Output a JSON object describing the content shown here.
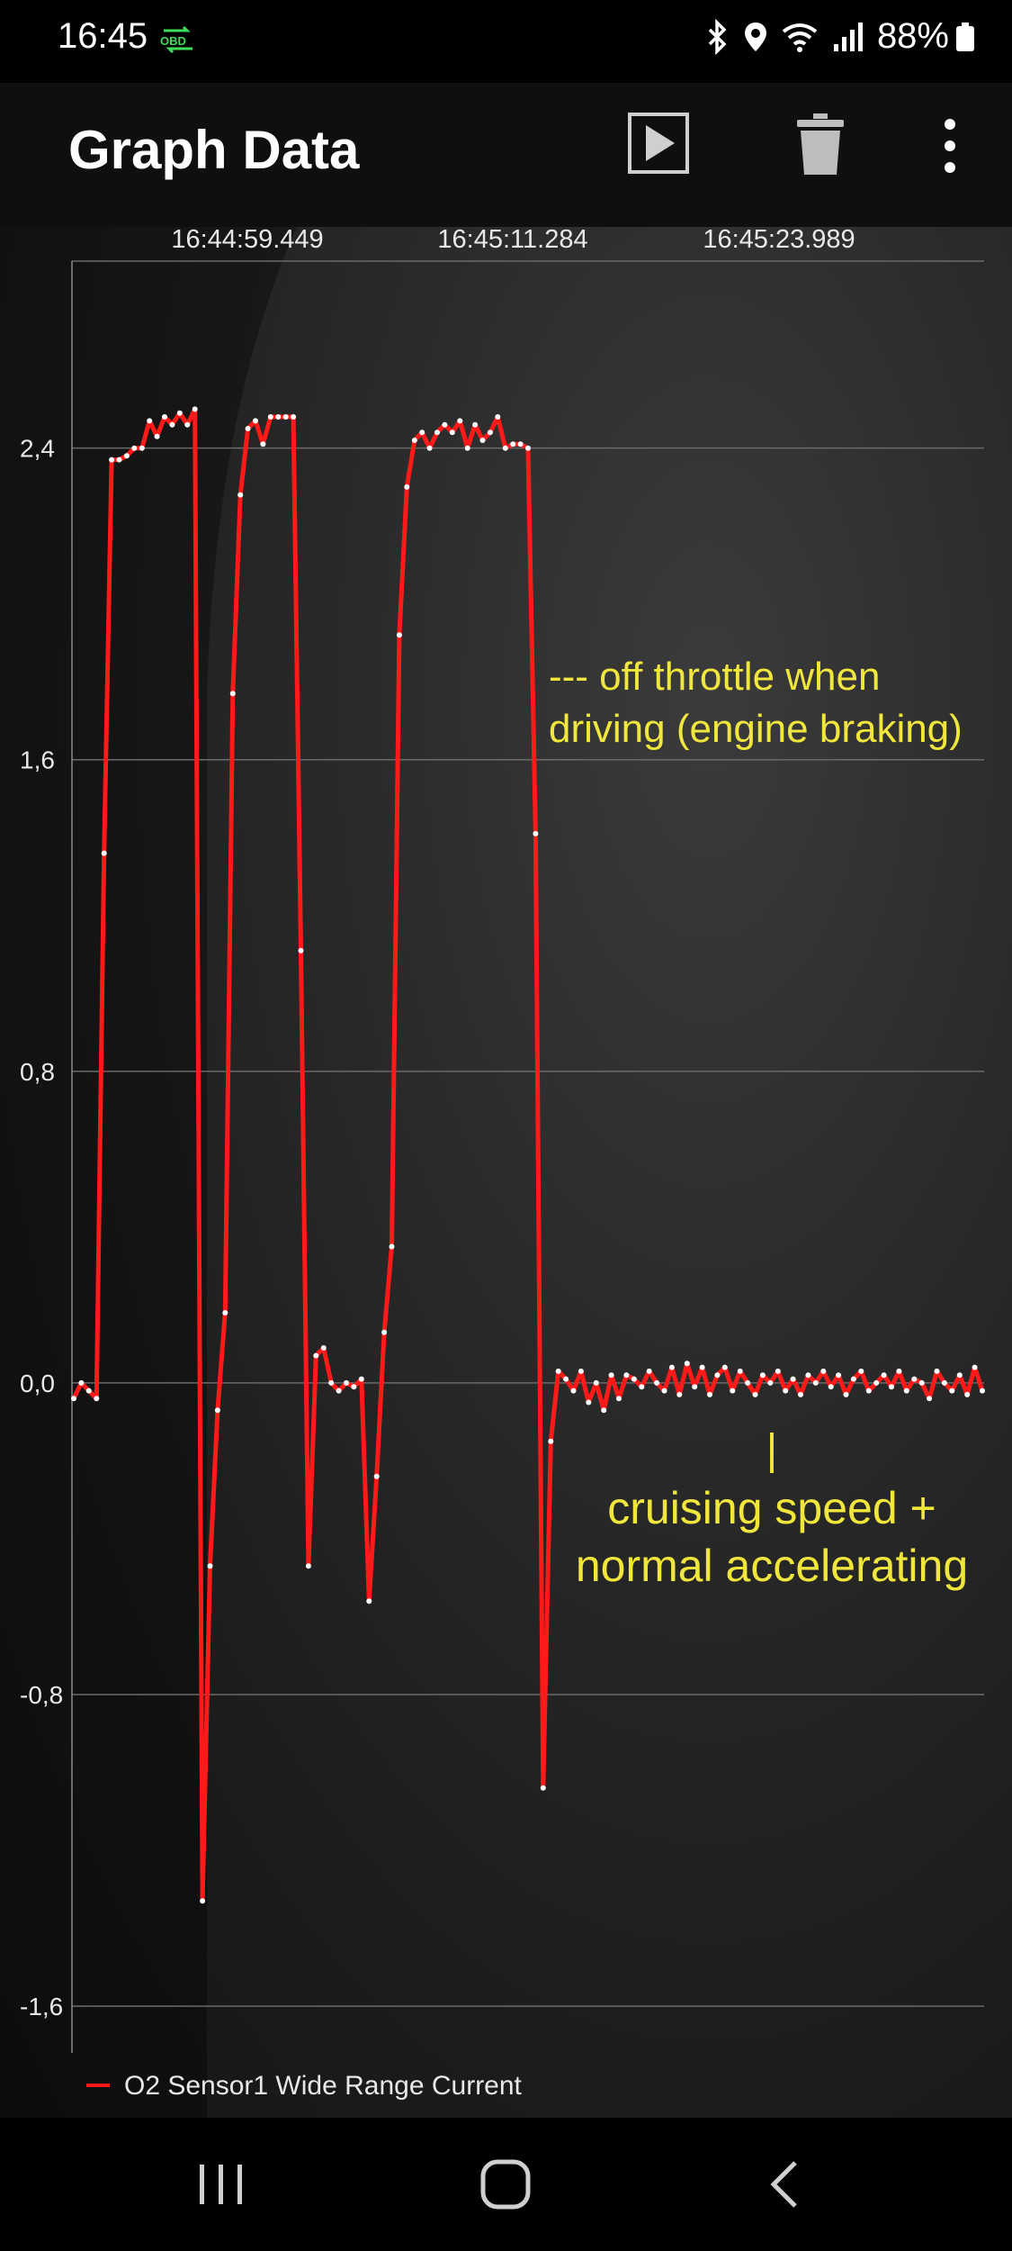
{
  "status_bar": {
    "time": "16:45",
    "obd_label": "OBD",
    "battery": "88%"
  },
  "app_bar": {
    "title": "Graph Data",
    "icons": [
      "play-icon",
      "trash-icon",
      "more-vert-icon"
    ]
  },
  "chart_data": {
    "type": "line",
    "title": "",
    "xlabel": "",
    "ylabel": "",
    "x_tick_labels": [
      "16:44:59.449",
      "16:45:11.284",
      "16:45:23.989"
    ],
    "y_ticks": [
      "2,4",
      "1,6",
      "0,8",
      "0,0",
      "-0,8",
      "-1,6"
    ],
    "y_tick_values": [
      2.4,
      1.6,
      0.8,
      0.0,
      -0.8,
      -1.6
    ],
    "ylim": [
      -1.72,
      2.88
    ],
    "grid": true,
    "legend_position": "bottom-left",
    "line_color": "#ff1a1a",
    "series": [
      {
        "name": "O2 Sensor1 Wide Range Current",
        "values": [
          -0.04,
          0.0,
          -0.02,
          -0.04,
          1.36,
          2.37,
          2.37,
          2.38,
          2.4,
          2.4,
          2.47,
          2.43,
          2.48,
          2.46,
          2.49,
          2.46,
          2.5,
          -1.33,
          -0.47,
          -0.07,
          0.18,
          1.77,
          2.28,
          2.45,
          2.47,
          2.41,
          2.48,
          2.48,
          2.48,
          2.48,
          1.11,
          -0.47,
          0.07,
          0.09,
          0.0,
          -0.02,
          0.0,
          -0.01,
          0.01,
          -0.56,
          -0.24,
          0.13,
          0.35,
          1.92,
          2.3,
          2.42,
          2.44,
          2.4,
          2.44,
          2.46,
          2.44,
          2.47,
          2.4,
          2.46,
          2.42,
          2.44,
          2.48,
          2.4,
          2.41,
          2.41,
          2.4,
          1.41,
          -1.04,
          -0.15,
          0.03,
          0.01,
          -0.02,
          0.03,
          -0.05,
          0.0,
          -0.07,
          0.02,
          -0.04,
          0.02,
          0.01,
          -0.01,
          0.03,
          0.0,
          -0.02,
          0.04,
          -0.03,
          0.05,
          -0.01,
          0.04,
          -0.03,
          0.02,
          0.04,
          -0.02,
          0.03,
          0.0,
          -0.03,
          0.02,
          0.0,
          0.03,
          -0.02,
          0.01,
          -0.03,
          0.02,
          0.0,
          0.03,
          -0.01,
          0.02,
          -0.03,
          0.01,
          0.03,
          -0.02,
          0.0,
          0.02,
          -0.01,
          0.03,
          -0.02,
          0.01,
          0.0,
          -0.04,
          0.03,
          0.0,
          -0.02,
          0.02,
          -0.03,
          0.04,
          -0.02
        ]
      }
    ],
    "annotations": [
      "--- off throttle when",
      "driving (engine braking)",
      "|",
      "cruising speed +",
      "normal accelerating"
    ]
  },
  "annotation_color": "#f0e63c"
}
